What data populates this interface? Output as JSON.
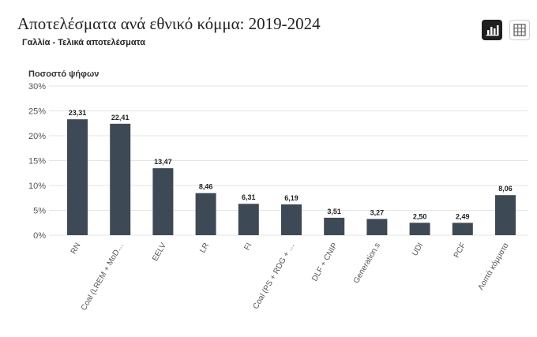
{
  "header": {
    "title": "Αποτελέσματα ανά εθνικό κόμμα: 2019-2024",
    "subtitle": "Γαλλία - Τελικά αποτελέσματα"
  },
  "toolbar": {
    "chart_view_icon": "bar-chart-icon",
    "table_view_icon": "grid-table-icon"
  },
  "colors": {
    "bar": "#3d4a55",
    "grid": "#e4e4e4",
    "active_button": "#1f1f1f"
  },
  "chart_data": {
    "type": "bar",
    "ylabel": "Ποσοστό ψήφων",
    "xlabel": "",
    "ylim": [
      0,
      30
    ],
    "yticks": [
      "0%",
      "5%",
      "10%",
      "15%",
      "20%",
      "25%",
      "30%"
    ],
    "grid": true,
    "legend": "none",
    "categories": [
      "RN",
      "Coal (LREM + MoD…",
      "EELV",
      "LR",
      "FI",
      "Coal (PS + RDG + …",
      "DLF + CNIP",
      "Generation.s",
      "UDI",
      "PCF",
      "Λοιπά κόμματα"
    ],
    "values": [
      23.31,
      22.41,
      13.47,
      8.46,
      6.31,
      6.19,
      3.51,
      3.27,
      2.5,
      2.49,
      8.06
    ],
    "value_labels": [
      "23,31",
      "22,41",
      "13,47",
      "8,46",
      "6,31",
      "6,19",
      "3,51",
      "3,27",
      "2,50",
      "2,49",
      "8,06"
    ]
  }
}
